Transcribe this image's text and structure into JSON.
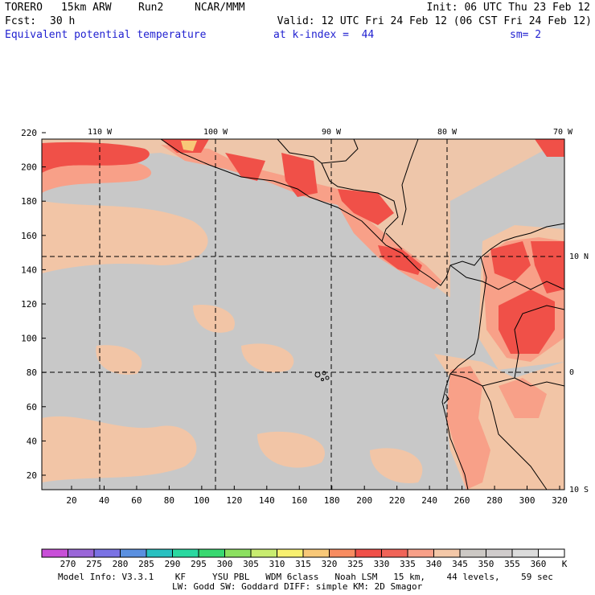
{
  "header": {
    "model": "TORERO",
    "resolution": "15km ARW",
    "run": "Run2",
    "org": "NCAR/MMM",
    "init": "Init: 06 UTC Thu 23 Feb 12",
    "fcst_label": "Fcst:",
    "fcst_value": "30 h",
    "valid": "Valid: 12 UTC Fri 24 Feb 12 (06 CST Fri 24 Feb 12)",
    "field": "Equivalent potential temperature",
    "level": "at k-index =  44",
    "smooth": "sm= 2"
  },
  "map": {
    "lon_labels": [
      "110 W",
      "100 W",
      "90 W",
      "80 W",
      "70 W"
    ],
    "lat_labels": [
      "10 N",
      "0",
      "10 S"
    ],
    "y_ticks": [
      "220",
      "200",
      "180",
      "160",
      "140",
      "120",
      "100",
      "80",
      "60",
      "40",
      "20"
    ],
    "x_ticks": [
      "20",
      "40",
      "60",
      "80",
      "100",
      "120",
      "140",
      "160",
      "180",
      "200",
      "220",
      "240",
      "260",
      "280",
      "300",
      "320"
    ]
  },
  "colorbar": {
    "levels": [
      "270",
      "275",
      "280",
      "285",
      "290",
      "295",
      "300",
      "305",
      "310",
      "315",
      "320",
      "325",
      "330",
      "335",
      "340",
      "345",
      "350",
      "355",
      "360"
    ],
    "unit": "K",
    "colors": [
      "#c84fd8",
      "#9a66d8",
      "#7a72e4",
      "#5a90e0",
      "#29c0c0",
      "#2ad8a0",
      "#38d870",
      "#8ce060",
      "#c8ec70",
      "#f8f070",
      "#f8c878",
      "#f88c60",
      "#f05048",
      "#f06458",
      "#f8a088",
      "#f4c8a8",
      "#ccc8c4",
      "#d0cccc",
      "#dcdcdc",
      "#ffffff"
    ]
  },
  "footer": {
    "line1": "Model Info: V3.3.1    KF     YSU PBL   WDM 6class   Noah LSM   15 km,    44 levels,    59 sec",
    "line2": "LW: Godd SW: Goddard DIFF: simple KM: 2D Smagor"
  },
  "colors": {
    "gray_field": "#c8c8c8",
    "tan_field": "#f4c8a8",
    "salmon_field": "#f8a088",
    "red_field": "#f05048",
    "title_blue": "#1f1fd0"
  }
}
